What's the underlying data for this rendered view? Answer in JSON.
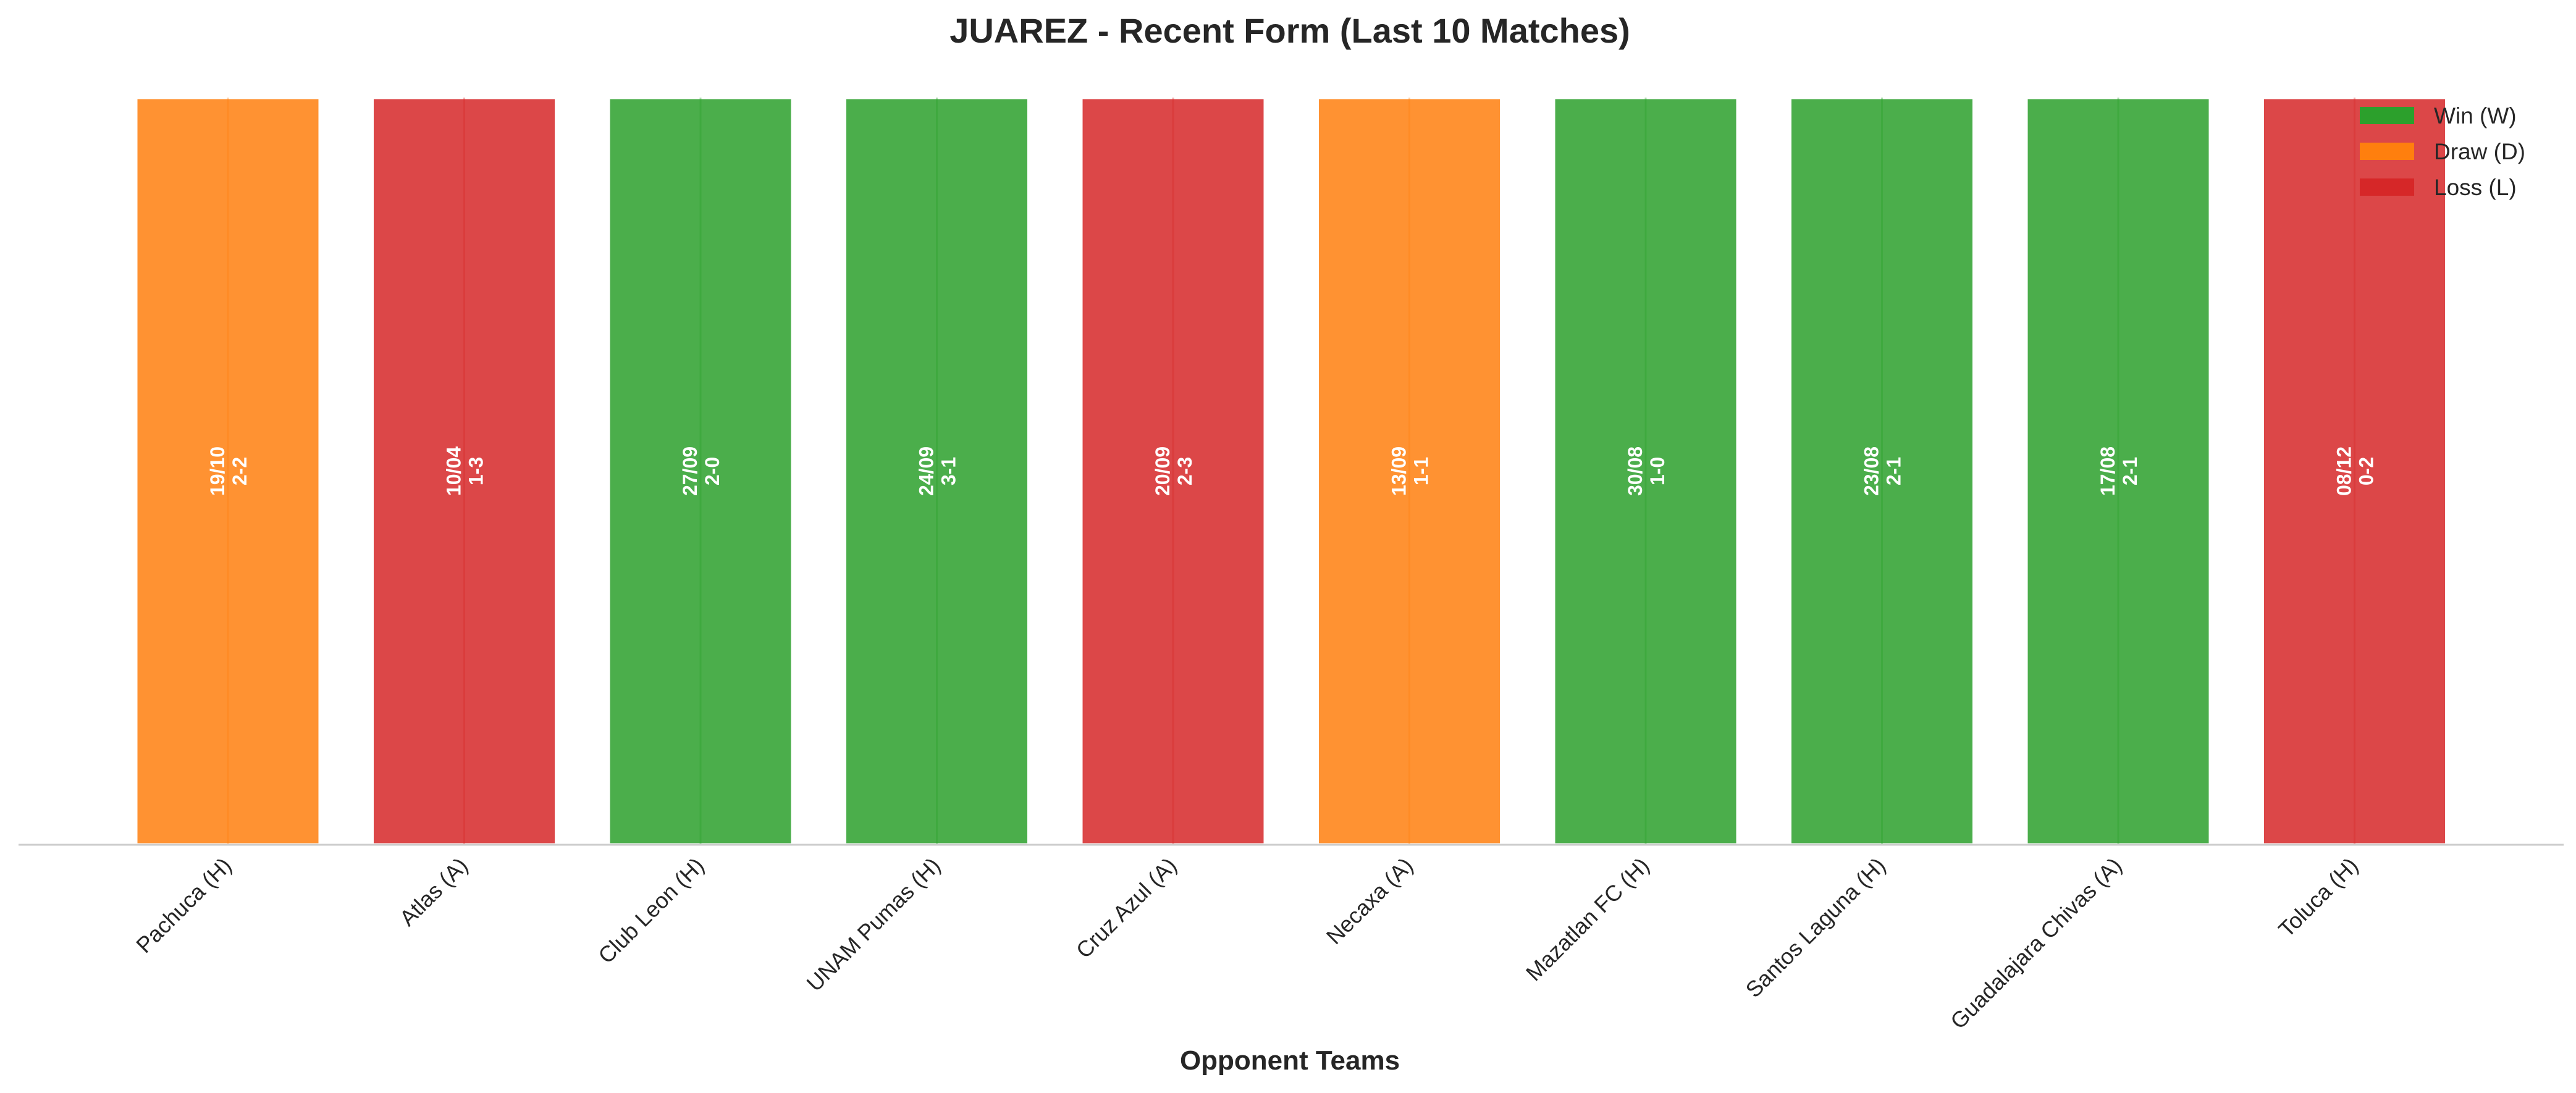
{
  "chart_data": {
    "type": "bar",
    "title": "JUAREZ - Recent Form (Last 10 Matches)",
    "xlabel": "Opponent Teams",
    "ylabel": "",
    "ylim": [
      0,
      1
    ],
    "grid": false,
    "legend_placement": "top-right",
    "categories": [
      "Pachuca (H)",
      "Atlas (A)",
      "Club Leon (H)",
      "UNAM Pumas (H)",
      "Cruz Azul (A)",
      "Necaxa (A)",
      "Mazatlan FC (H)",
      "Santos Laguna (H)",
      "Guadalajara Chivas (A)",
      "Toluca (H)"
    ],
    "values": [
      1,
      1,
      1,
      1,
      1,
      1,
      1,
      1,
      1,
      1
    ],
    "results": [
      "D",
      "L",
      "W",
      "W",
      "L",
      "D",
      "W",
      "W",
      "W",
      "L"
    ],
    "dates": [
      "19/10",
      "10/04",
      "27/09",
      "24/09",
      "20/09",
      "13/09",
      "30/08",
      "23/08",
      "17/08",
      "08/12"
    ],
    "scores": [
      "2-2",
      "1-3",
      "2-0",
      "3-1",
      "2-3",
      "1-1",
      "1-0",
      "2-1",
      "2-1",
      "0-2"
    ],
    "legend": [
      {
        "key": "W",
        "label": "Win (W)",
        "color": "#2ca02c"
      },
      {
        "key": "D",
        "label": "Draw (D)",
        "color": "#ff7f0e"
      },
      {
        "key": "L",
        "label": "Loss (L)",
        "color": "#d62728"
      }
    ],
    "colors": {
      "W": "#2ca02c",
      "D": "#ff7f0e",
      "L": "#d62728"
    }
  }
}
